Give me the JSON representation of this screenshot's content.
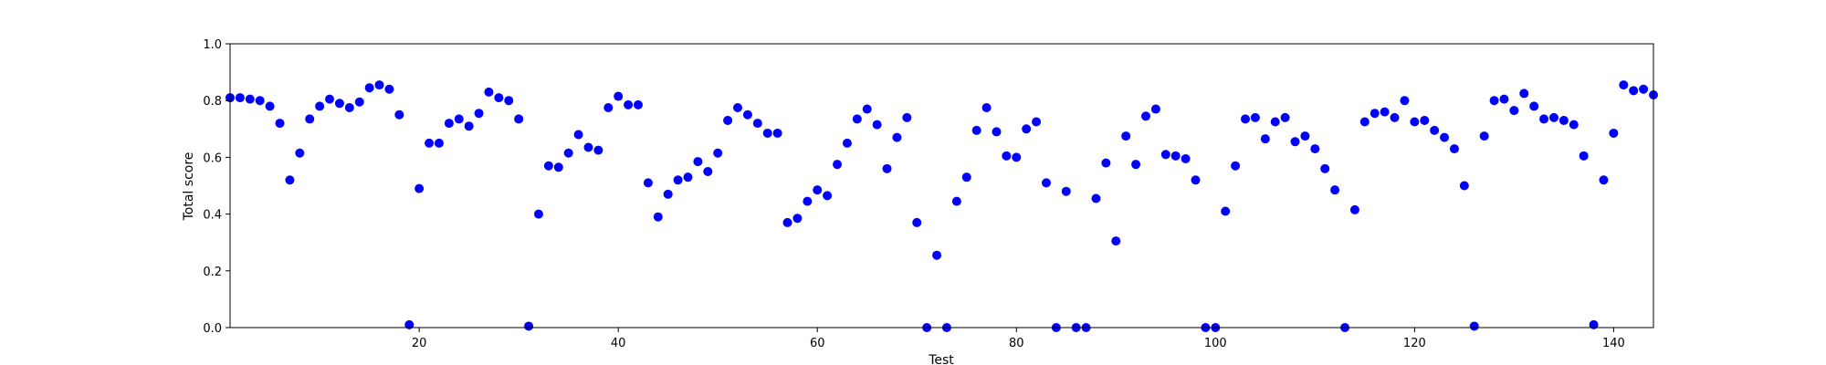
{
  "chart_data": {
    "type": "scatter",
    "title": "",
    "xlabel": "Test",
    "ylabel": "Total score",
    "xlim": [
      1,
      144
    ],
    "ylim": [
      0.0,
      1.0
    ],
    "x_ticks": [
      20,
      40,
      60,
      80,
      100,
      120,
      140
    ],
    "y_ticks": [
      0.0,
      0.2,
      0.4,
      0.6,
      0.8,
      1.0
    ],
    "x_tick_labels": [
      "20",
      "40",
      "60",
      "80",
      "100",
      "120",
      "140"
    ],
    "y_tick_labels": [
      "0.0",
      "0.2",
      "0.4",
      "0.6",
      "0.8",
      "1.0"
    ],
    "grid": false,
    "marker_color": "#0000ff",
    "series": [
      {
        "x": [
          1,
          2,
          3,
          4,
          5,
          6,
          7,
          8,
          9,
          10,
          11,
          12,
          13,
          14,
          15,
          16,
          17,
          18,
          19,
          20,
          21,
          22,
          23,
          24,
          25,
          26,
          27,
          28,
          29,
          30,
          31,
          32,
          33,
          34,
          35,
          36,
          37,
          38,
          39,
          40,
          41,
          42,
          43,
          44,
          45,
          46,
          47,
          48,
          49,
          50,
          51,
          52,
          53,
          54,
          55,
          56,
          57,
          58,
          59,
          60,
          61,
          62,
          63,
          64,
          65,
          66,
          67,
          68,
          69,
          70,
          71,
          72,
          73,
          74,
          75,
          76,
          77,
          78,
          79,
          80,
          81,
          82,
          83,
          84,
          85,
          86,
          87,
          88,
          89,
          90,
          91,
          92,
          93,
          94,
          95,
          96,
          97,
          98,
          99,
          100,
          101,
          102,
          103,
          104,
          105,
          106,
          107,
          108,
          109,
          110,
          111,
          112,
          113,
          114,
          115,
          116,
          117,
          118,
          119,
          120,
          121,
          122,
          123,
          124,
          125,
          126,
          127,
          128,
          129,
          130,
          131,
          132,
          133,
          134,
          135,
          136,
          137,
          138,
          139,
          140,
          141,
          142,
          143,
          144
        ],
        "y": [
          0.81,
          0.81,
          0.805,
          0.8,
          0.78,
          0.72,
          0.52,
          0.615,
          0.735,
          0.78,
          0.805,
          0.79,
          0.775,
          0.795,
          0.845,
          0.855,
          0.84,
          0.75,
          0.01,
          0.49,
          0.65,
          0.65,
          0.72,
          0.735,
          0.71,
          0.755,
          0.83,
          0.81,
          0.8,
          0.735,
          0.005,
          0.4,
          0.57,
          0.565,
          0.615,
          0.68,
          0.635,
          0.625,
          0.775,
          0.815,
          0.785,
          0.785,
          0.51,
          0.39,
          0.47,
          0.52,
          0.53,
          0.585,
          0.55,
          0.615,
          0.73,
          0.775,
          0.75,
          0.72,
          0.685,
          0.685,
          0.37,
          0.385,
          0.445,
          0.485,
          0.465,
          0.575,
          0.65,
          0.735,
          0.77,
          0.715,
          0.56,
          0.67,
          0.74,
          0.37,
          0.0,
          0.255,
          0.0,
          0.445,
          0.53,
          0.695,
          0.775,
          0.69,
          0.605,
          0.6,
          0.7,
          0.725,
          0.51,
          0.0,
          0.48,
          0.0,
          0.0,
          0.455,
          0.58,
          0.305,
          0.675,
          0.575,
          0.745,
          0.77,
          0.61,
          0.605,
          0.595,
          0.52,
          0.0,
          0.0,
          0.41,
          0.57,
          0.735,
          0.74,
          0.665,
          0.725,
          0.74,
          0.655,
          0.675,
          0.63,
          0.56,
          0.485,
          0.0,
          0.415,
          0.725,
          0.755,
          0.76,
          0.74,
          0.8,
          0.725,
          0.73,
          0.695,
          0.67,
          0.63,
          0.5,
          0.005,
          0.675,
          0.8,
          0.805,
          0.765,
          0.825,
          0.78,
          0.735,
          0.74,
          0.73,
          0.715,
          0.605,
          0.01,
          0.52,
          0.685,
          0.855,
          0.835,
          0.84,
          0.82
        ]
      }
    ]
  }
}
